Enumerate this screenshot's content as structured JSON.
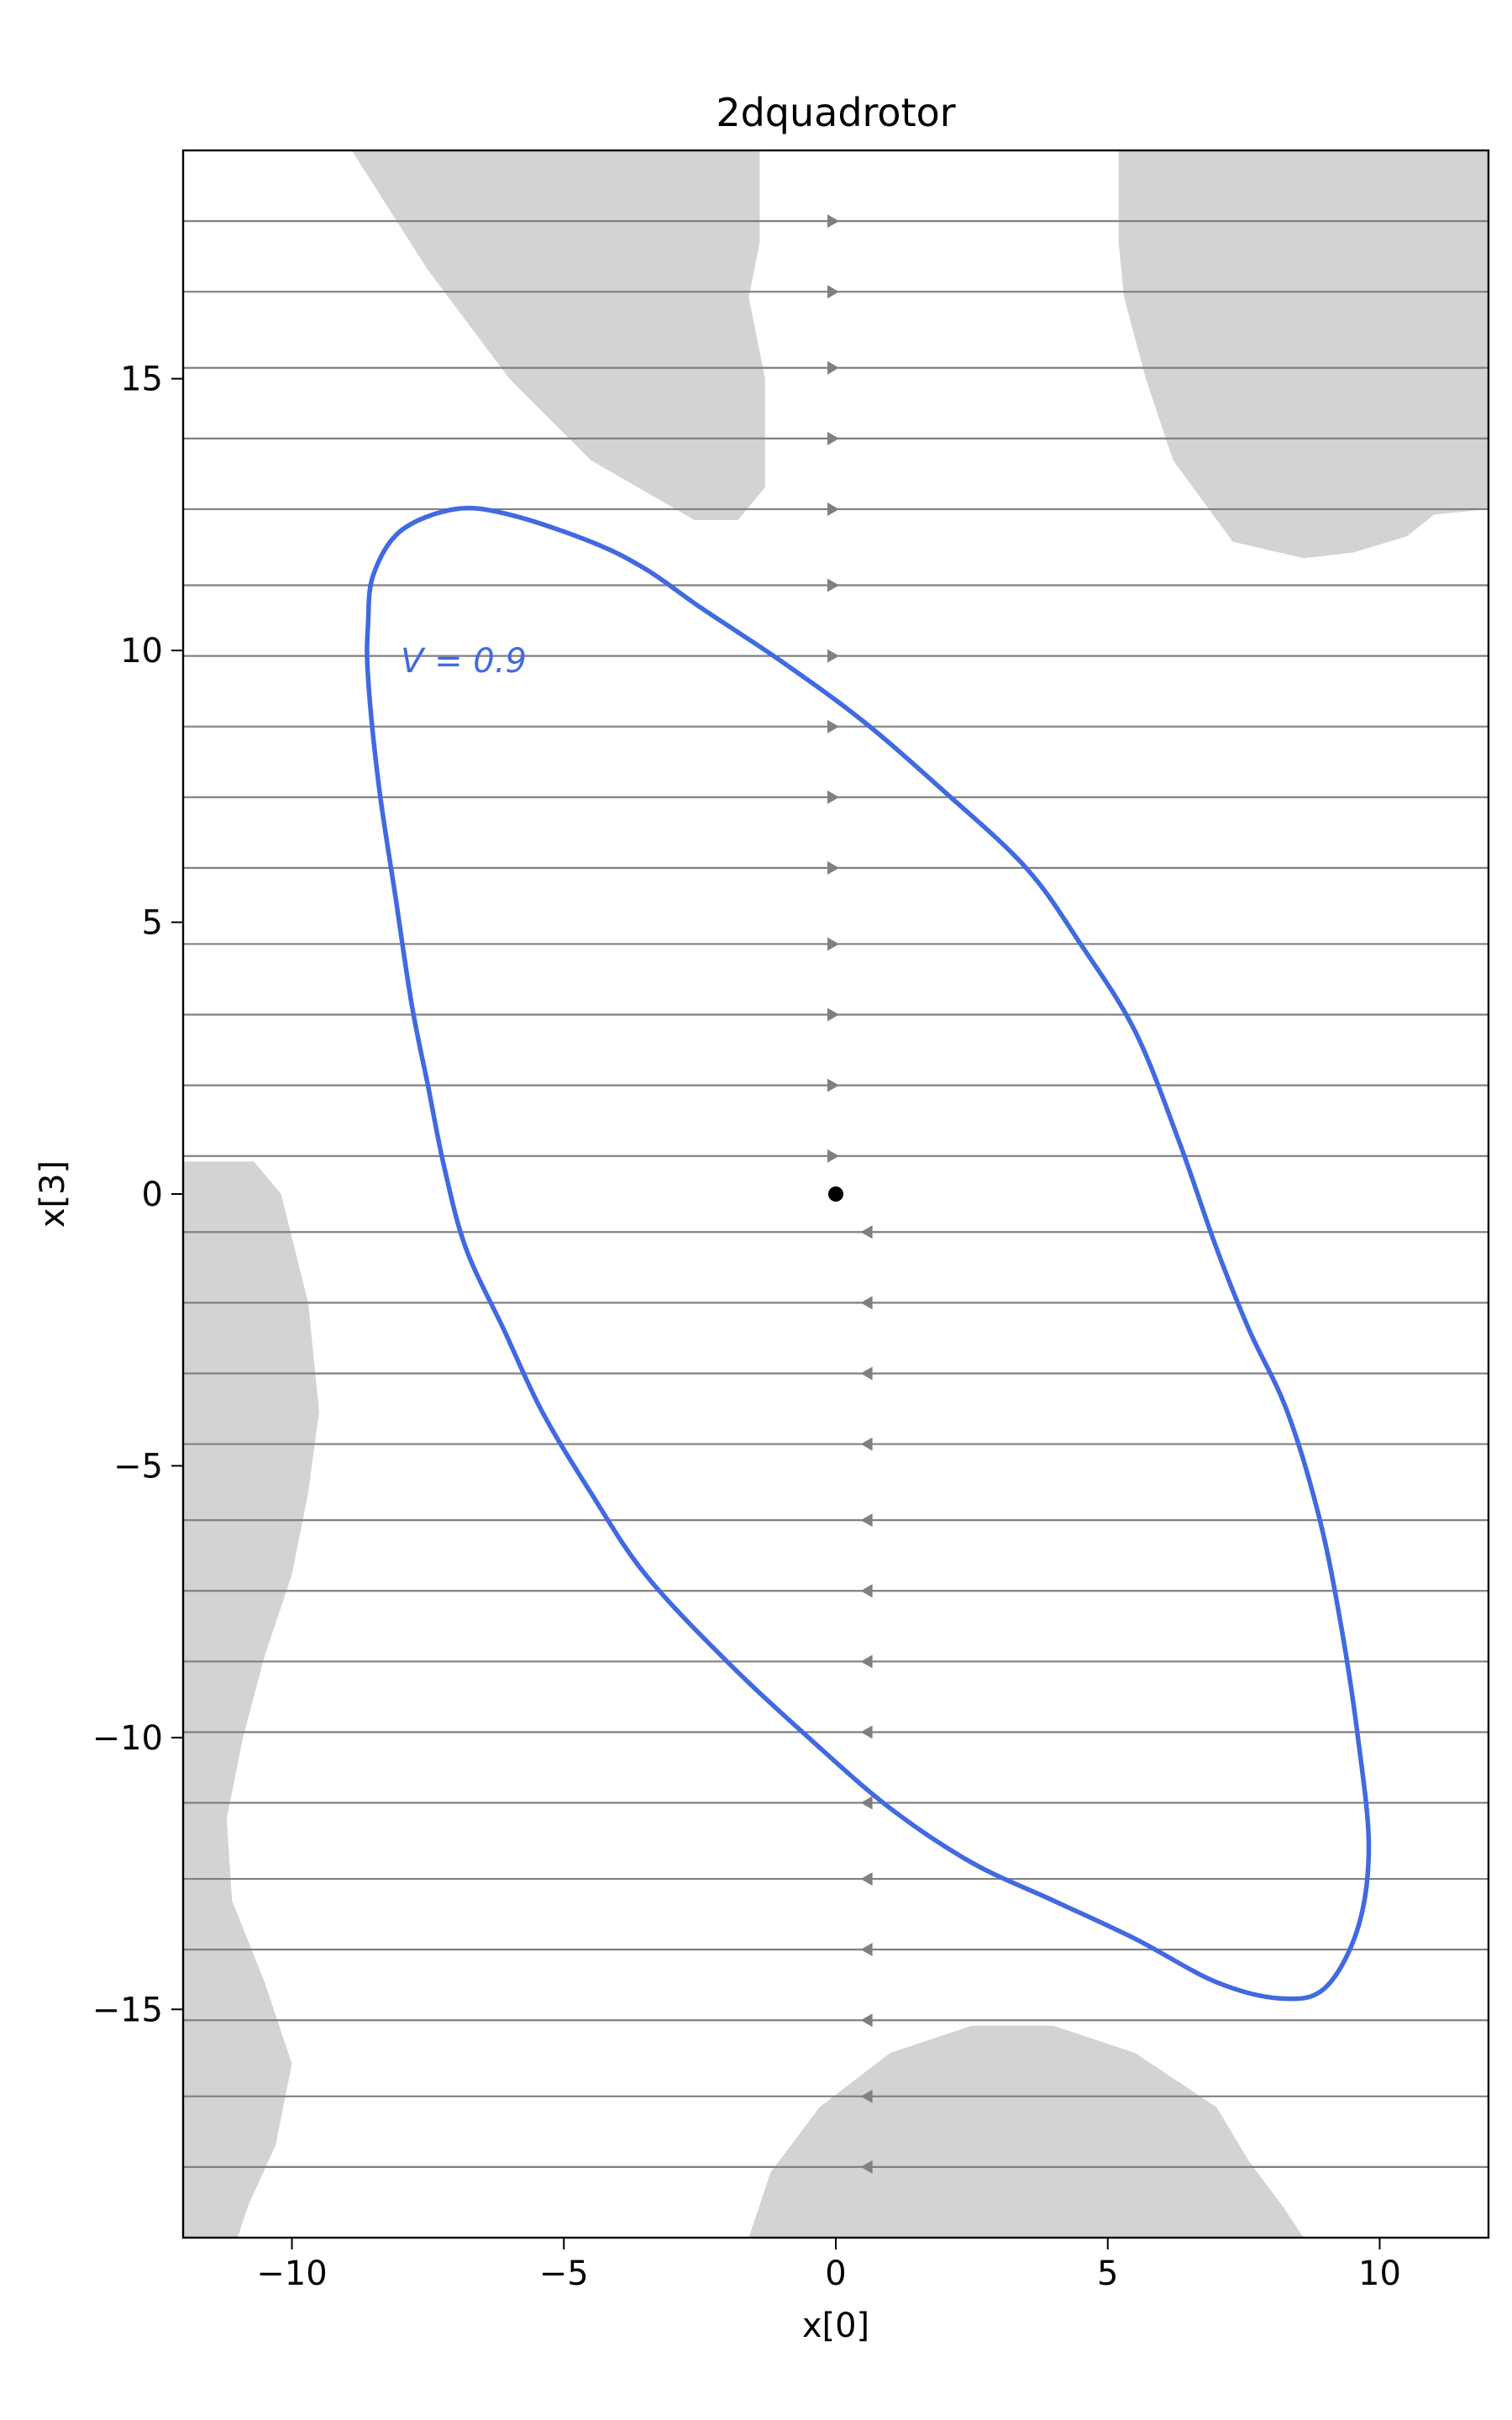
{
  "chart_data": {
    "type": "line",
    "title": "2dquadrotor",
    "xlabel": "x[0]",
    "ylabel": "x[3]",
    "xlim": [
      -12,
      12
    ],
    "ylim": [
      -19.2,
      19.2
    ],
    "xticks": [
      -10,
      -5,
      0,
      5,
      10
    ],
    "xtick_labels": [
      "−10",
      "−5",
      "0",
      "5",
      "10"
    ],
    "yticks": [
      -15,
      -10,
      -5,
      0,
      5,
      10,
      15
    ],
    "ytick_labels": [
      "−15",
      "−10",
      "−5",
      "0",
      "5",
      "10",
      "15"
    ],
    "grid": false,
    "colors": {
      "level_set": "#4169e1",
      "unsafe_region": "#d3d3d3",
      "streamlines": "#808080",
      "equilibrium": "#000000"
    },
    "equilibrium_point": {
      "x": 0,
      "y": 0
    },
    "level_set": {
      "label": "V = 0.9",
      "label_position_data": {
        "x": -8.0,
        "y": 9.6
      },
      "points": [
        [
          -7.0,
          12.6
        ],
        [
          -6.0,
          12.5
        ],
        [
          -4.5,
          12.0
        ],
        [
          -3.5,
          11.5
        ],
        [
          -2.5,
          10.8
        ],
        [
          -1.0,
          9.8
        ],
        [
          0.5,
          8.7
        ],
        [
          2.0,
          7.4
        ],
        [
          3.5,
          6.0
        ],
        [
          4.5,
          4.6
        ],
        [
          5.5,
          3.0
        ],
        [
          6.3,
          1.0
        ],
        [
          7.0,
          -1.0
        ],
        [
          7.6,
          -2.5
        ],
        [
          8.3,
          -4.0
        ],
        [
          8.9,
          -6.0
        ],
        [
          9.3,
          -8.0
        ],
        [
          9.6,
          -10.0
        ],
        [
          9.8,
          -12.0
        ],
        [
          9.6,
          -13.5
        ],
        [
          9.0,
          -14.6
        ],
        [
          8.2,
          -14.8
        ],
        [
          7.0,
          -14.5
        ],
        [
          5.5,
          -13.7
        ],
        [
          4.0,
          -13.0
        ],
        [
          2.5,
          -12.3
        ],
        [
          1.0,
          -11.3
        ],
        [
          -0.5,
          -10.0
        ],
        [
          -2.0,
          -8.6
        ],
        [
          -3.5,
          -7.0
        ],
        [
          -4.5,
          -5.5
        ],
        [
          -5.4,
          -4.0
        ],
        [
          -6.1,
          -2.5
        ],
        [
          -6.8,
          -1.0
        ],
        [
          -7.2,
          0.5
        ],
        [
          -7.5,
          2.0
        ],
        [
          -7.8,
          3.5
        ],
        [
          -8.1,
          5.5
        ],
        [
          -8.4,
          7.5
        ],
        [
          -8.6,
          9.5
        ],
        [
          -8.6,
          10.5
        ],
        [
          -8.5,
          11.4
        ],
        [
          -8.0,
          12.2
        ],
        [
          -7.0,
          12.6
        ]
      ]
    },
    "unsafe_regions": [
      {
        "name": "top-center",
        "points": [
          [
            -8.9,
            19.2
          ],
          [
            -1.4,
            19.2
          ],
          [
            -1.4,
            17.5
          ],
          [
            -1.6,
            16.5
          ],
          [
            -1.3,
            15.0
          ],
          [
            -1.3,
            13.0
          ],
          [
            -1.8,
            12.4
          ],
          [
            -2.6,
            12.4
          ],
          [
            -4.5,
            13.5
          ],
          [
            -6.0,
            15.0
          ],
          [
            -7.5,
            17.0
          ],
          [
            -8.9,
            19.2
          ]
        ]
      },
      {
        "name": "top-right",
        "points": [
          [
            5.2,
            19.2
          ],
          [
            12.0,
            19.2
          ],
          [
            12.0,
            12.6
          ],
          [
            11.0,
            12.5
          ],
          [
            10.5,
            12.1
          ],
          [
            9.5,
            11.8
          ],
          [
            8.6,
            11.7
          ],
          [
            7.3,
            12.0
          ],
          [
            6.2,
            13.5
          ],
          [
            5.7,
            15.0
          ],
          [
            5.3,
            16.5
          ],
          [
            5.2,
            17.5
          ],
          [
            5.2,
            19.2
          ]
        ]
      },
      {
        "name": "left",
        "points": [
          [
            -12.0,
            0.6
          ],
          [
            -10.7,
            0.6
          ],
          [
            -10.2,
            0.0
          ],
          [
            -9.7,
            -2.0
          ],
          [
            -9.5,
            -4.0
          ],
          [
            -9.7,
            -5.5
          ],
          [
            -10.0,
            -7.0
          ],
          [
            -10.5,
            -8.5
          ],
          [
            -10.9,
            -10.0
          ],
          [
            -11.2,
            -11.5
          ],
          [
            -11.1,
            -13.0
          ],
          [
            -10.5,
            -14.5
          ],
          [
            -10.0,
            -16.0
          ],
          [
            -10.3,
            -17.5
          ],
          [
            -10.8,
            -18.6
          ],
          [
            -11.0,
            -19.2
          ],
          [
            -12.0,
            -19.2
          ],
          [
            -12.0,
            0.6
          ]
        ]
      },
      {
        "name": "bottom-center",
        "points": [
          [
            -1.6,
            -19.2
          ],
          [
            8.6,
            -19.2
          ],
          [
            8.2,
            -18.6
          ],
          [
            7.6,
            -17.8
          ],
          [
            7.0,
            -16.8
          ],
          [
            5.5,
            -15.8
          ],
          [
            4.0,
            -15.3
          ],
          [
            2.5,
            -15.3
          ],
          [
            1.0,
            -15.8
          ],
          [
            -0.3,
            -16.8
          ],
          [
            -1.2,
            -18.0
          ],
          [
            -1.6,
            -19.2
          ]
        ]
      }
    ],
    "streamlines": {
      "y_values": [
        17.9,
        16.6,
        15.2,
        13.9,
        12.6,
        11.2,
        9.9,
        8.6,
        7.3,
        6.0,
        4.6,
        3.3,
        2.0,
        0.7,
        -0.7,
        -2.0,
        -3.3,
        -4.6,
        -6.0,
        -7.3,
        -8.6,
        -9.9,
        -11.2,
        -12.6,
        -13.9,
        -15.2,
        -16.6,
        -17.9
      ],
      "direction_above_zero": "right",
      "direction_below_zero": "left"
    }
  }
}
